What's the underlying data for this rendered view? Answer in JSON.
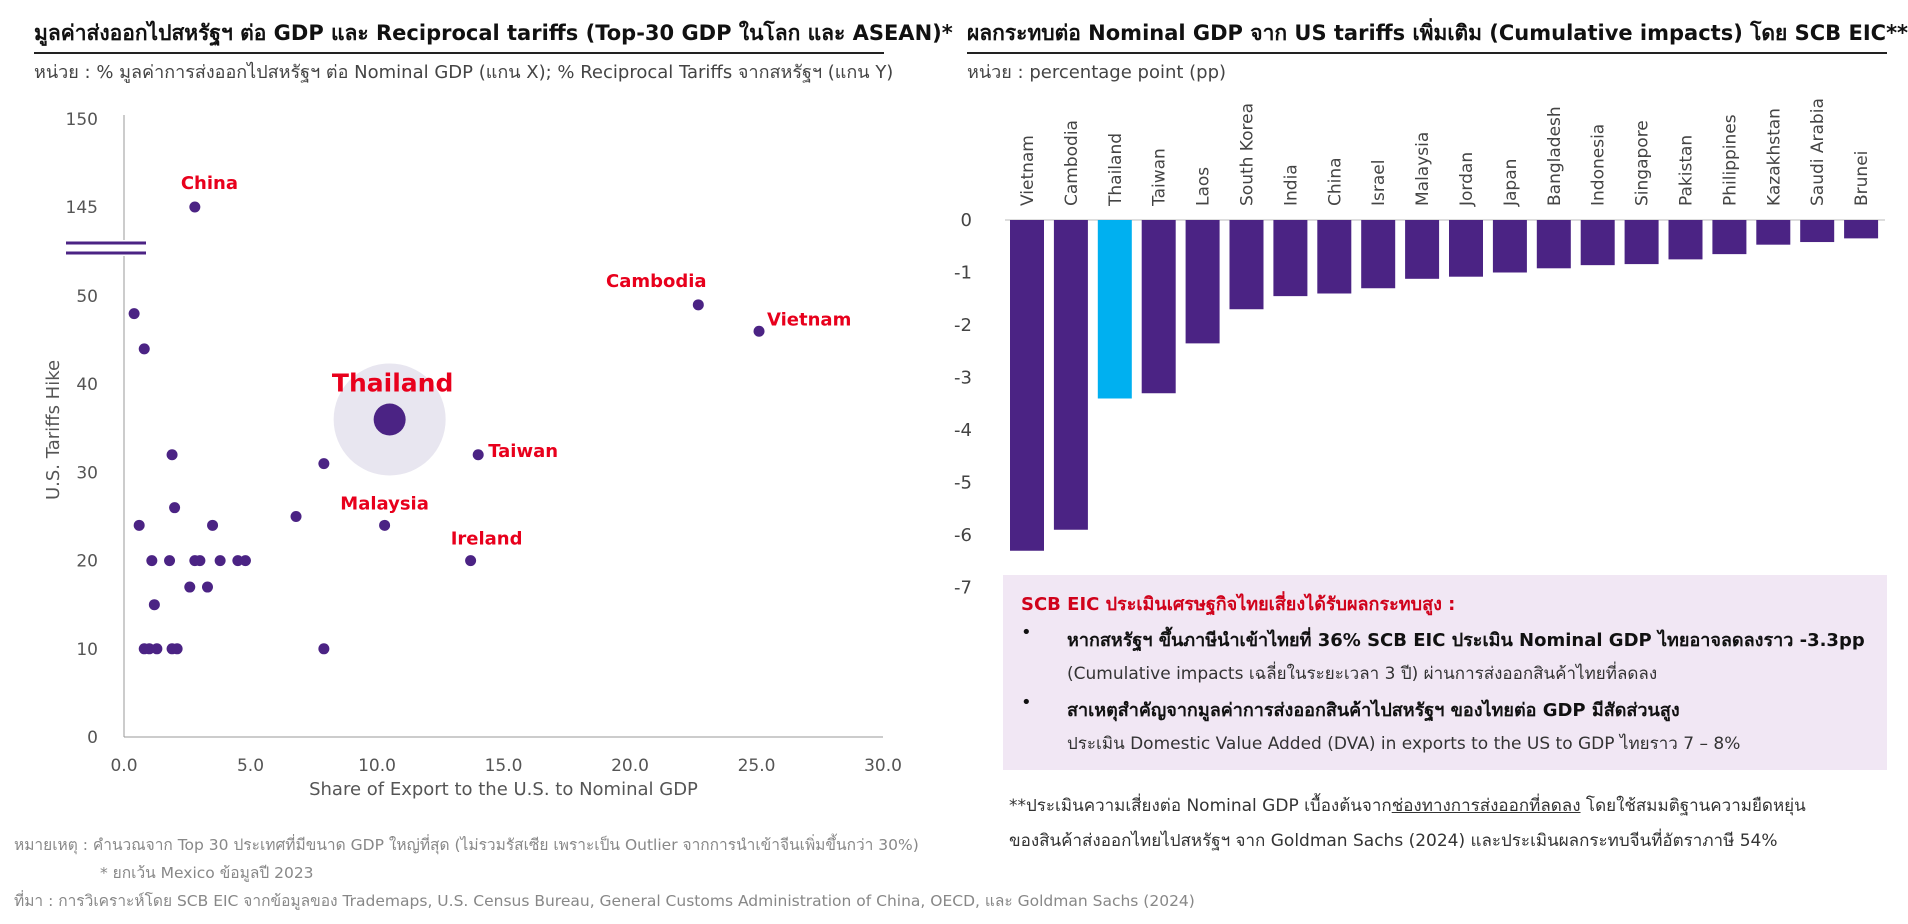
{
  "left": {
    "title": "มูลค่าส่งออกไปสหรัฐฯ ต่อ GDP และ Reciprocal tariffs (Top-30 GDP ในโลก และ ASEAN)*",
    "unit": "หน่วย : % มูลค่าการส่งออกไปสหรัฐฯ ต่อ Nominal GDP (แกน X); % Reciprocal Tariffs จากสหรัฐฯ (แกน Y)"
  },
  "right": {
    "title": "ผลกระทบต่อ Nominal GDP จาก US tariffs เพิ่มเติม (Cumulative impacts)  โดย SCB EIC**",
    "unit": "หน่วย : percentage point (pp)"
  },
  "chart_data": [
    {
      "type": "scatter",
      "xlabel": "Share of Export to the U.S. to Nominal GDP",
      "ylabel": "U.S. Tariffs Hike",
      "xlim": [
        0,
        30
      ],
      "xticks": [
        "0.0",
        "5.0",
        "10.0",
        "15.0",
        "20.0",
        "25.0",
        "30.0"
      ],
      "yticks": [
        "0",
        "10",
        "20",
        "30",
        "40",
        "50",
        "145",
        "150"
      ],
      "axis_break": "between 50 and 145",
      "highlight_color": "#e8e6f0",
      "point_color": "#4b2384",
      "label_color": "#e8001c",
      "points": [
        {
          "x": 2.8,
          "y": 145,
          "label": "China"
        },
        {
          "x": 0.4,
          "y": 48,
          "label": ""
        },
        {
          "x": 0.8,
          "y": 44,
          "label": ""
        },
        {
          "x": 22.7,
          "y": 49,
          "label": "Cambodia"
        },
        {
          "x": 25.1,
          "y": 46,
          "label": "Vietnam"
        },
        {
          "x": 10.5,
          "y": 36,
          "label": "Thailand",
          "highlight": true
        },
        {
          "x": 14.0,
          "y": 32,
          "label": "Taiwan"
        },
        {
          "x": 7.9,
          "y": 31,
          "label": ""
        },
        {
          "x": 1.9,
          "y": 32,
          "label": ""
        },
        {
          "x": 2.0,
          "y": 26,
          "label": ""
        },
        {
          "x": 6.8,
          "y": 25,
          "label": ""
        },
        {
          "x": 0.6,
          "y": 24,
          "label": ""
        },
        {
          "x": 3.5,
          "y": 24,
          "label": ""
        },
        {
          "x": 10.3,
          "y": 24,
          "label": "Malaysia"
        },
        {
          "x": 1.1,
          "y": 20,
          "label": ""
        },
        {
          "x": 1.8,
          "y": 20,
          "label": ""
        },
        {
          "x": 2.8,
          "y": 20,
          "label": ""
        },
        {
          "x": 3.0,
          "y": 20,
          "label": ""
        },
        {
          "x": 3.8,
          "y": 20,
          "label": ""
        },
        {
          "x": 4.5,
          "y": 20,
          "label": ""
        },
        {
          "x": 4.8,
          "y": 20,
          "label": ""
        },
        {
          "x": 13.7,
          "y": 20,
          "label": "Ireland"
        },
        {
          "x": 2.6,
          "y": 17,
          "label": ""
        },
        {
          "x": 3.3,
          "y": 17,
          "label": ""
        },
        {
          "x": 1.2,
          "y": 15,
          "label": ""
        },
        {
          "x": 0.8,
          "y": 10,
          "label": ""
        },
        {
          "x": 1.0,
          "y": 10,
          "label": ""
        },
        {
          "x": 1.3,
          "y": 10,
          "label": ""
        },
        {
          "x": 1.9,
          "y": 10,
          "label": ""
        },
        {
          "x": 2.1,
          "y": 10,
          "label": ""
        },
        {
          "x": 7.9,
          "y": 10,
          "label": ""
        }
      ]
    },
    {
      "type": "bar",
      "categories": [
        "Vietnam",
        "Cambodia",
        "Thailand",
        "Taiwan",
        "Laos",
        "South Korea",
        "India",
        "China",
        "Israel",
        "Malaysia",
        "Jordan",
        "Japan",
        "Bangladesh",
        "Indonesia",
        "Singapore",
        "Pakistan",
        "Philippines",
        "Kazakhstan",
        "Saudi Arabia",
        "Brunei"
      ],
      "values": [
        -6.3,
        -5.9,
        -3.4,
        -3.3,
        -2.35,
        -1.7,
        -1.45,
        -1.4,
        -1.3,
        -1.12,
        -1.08,
        -1.0,
        -0.92,
        -0.86,
        -0.84,
        -0.75,
        -0.65,
        -0.47,
        -0.42,
        -0.35
      ],
      "ylim": [
        -7,
        0
      ],
      "yticks": [
        "0",
        "-1",
        "-2",
        "-3",
        "-4",
        "-5",
        "-6",
        "-7"
      ],
      "bar_color": "#4b2384",
      "highlight_color": "#00b0f0",
      "highlight": "Thailand"
    }
  ],
  "box": {
    "head": "SCB EIC ประเมินเศรษฐกิจไทยเสี่ยงได้รับผลกระทบสูง  :",
    "bullet": "•",
    "b1_main": "หากสหรัฐฯ ขึ้นภาษีนำเข้าไทยที่ 36% SCB EIC ประเมิน Nominal GDP ไทยอาจลดลงราว -3.3pp",
    "b1_sub": "(Cumulative impacts เฉลี่ยในระยะเวลา 3 ปี) ผ่านการส่งออกสินค้าไทยที่ลดลง",
    "b2_main": "สาเหตุสำคัญจากมูลค่าการส่งออกสินค้าไปสหรัฐฯ  ของไทยต่อ GDP มีสัดส่วนสูง",
    "b2_sub": "ประเมิน Domestic Value Added (DVA) in exports to the US to GDP ไทยราว 7 – 8%"
  },
  "note2": {
    "l1_pre": "**ประเมินความเสี่ยงต่อ Nominal GDP เบื้องต้นจาก",
    "l1_u": "ช่องทางการส่งออกที่ลดลง",
    "l1_post": " โดยใช้สมมติฐานความยืดหยุ่น",
    "l2": "ของสินค้าส่งออกไทยไปสหรัฐฯ จาก Goldman Sachs (2024) และประเมินผลกระทบจีนที่อัตราภาษี 54%"
  },
  "footnotes": {
    "f1": "หมายเหตุ : คำนวณจาก Top 30 ประเทศที่มีขนาด GDP ใหญ่ที่สุด (ไม่รวมรัสเซีย เพราะเป็น Outlier จากการนำเข้าจีนเพิ่มขึ้นกว่า 30%)",
    "f2": "* ยกเว้น Mexico ข้อมูลปี 2023",
    "f3": "ที่มา : การวิเคราะห์โดย SCB EIC จากข้อมูลของ Trademaps, U.S. Census Bureau, General Customs Administration of China, OECD, และ Goldman Sachs (2024)"
  }
}
